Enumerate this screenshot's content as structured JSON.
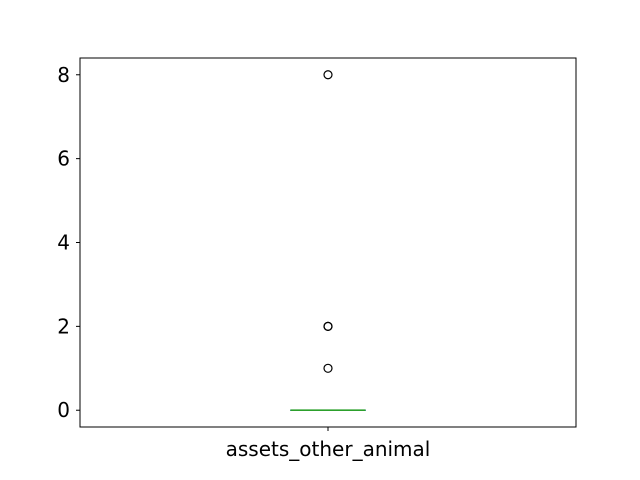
{
  "chart_data": {
    "type": "box",
    "title": "",
    "xlabel": "",
    "ylabel": "",
    "categories": [
      "assets_other_animal"
    ],
    "ylim": [
      -0.4,
      8.4
    ],
    "yticks": [
      "0",
      "2",
      "4",
      "6",
      "8"
    ],
    "grid": false,
    "boxes": [
      {
        "category": "assets_other_animal",
        "q1": 0,
        "median": 0,
        "q3": 0,
        "whisker_low": 0,
        "whisker_high": 0,
        "outliers": [
          1,
          2,
          2,
          8
        ]
      }
    ],
    "colors": {
      "box": "#1f77b4",
      "median": "#2ca02c",
      "whisker": "#000000",
      "outlier": "#000000"
    }
  }
}
